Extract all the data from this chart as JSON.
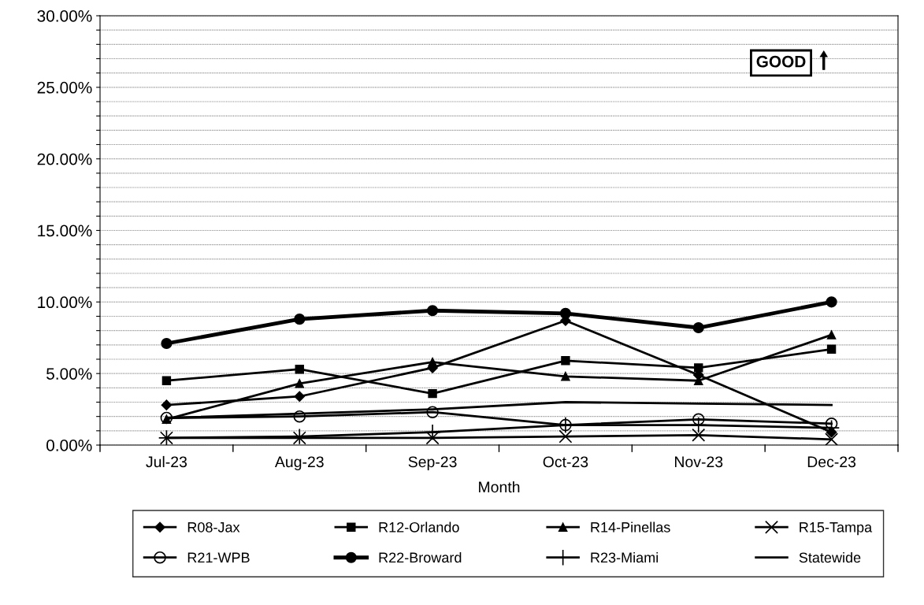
{
  "chart_data": {
    "type": "line",
    "xlabel": "Month",
    "categories": [
      "Jul-23",
      "Aug-23",
      "Sep-23",
      "Oct-23",
      "Nov-23",
      "Dec-23"
    ],
    "series": [
      {
        "name": "R08-Jax",
        "color": "#000000",
        "marker": "diamond",
        "values": [
          2.8,
          3.4,
          5.4,
          8.7,
          4.9,
          0.9
        ]
      },
      {
        "name": "R12-Orlando",
        "color": "#000000",
        "marker": "square",
        "values": [
          4.5,
          5.3,
          3.6,
          5.9,
          5.4,
          6.7
        ]
      },
      {
        "name": "R14-Pinellas",
        "color": "#000000",
        "marker": "triangle",
        "values": [
          1.8,
          4.3,
          5.8,
          4.8,
          4.5,
          7.7
        ]
      },
      {
        "name": "R15-Tampa",
        "color": "#000000",
        "marker": "cross",
        "values": [
          0.5,
          0.5,
          0.5,
          0.6,
          0.7,
          0.4
        ]
      },
      {
        "name": "R21-WPB",
        "color": "#000000",
        "marker": "open circle",
        "values": [
          1.9,
          2.0,
          2.3,
          1.4,
          1.8,
          1.5
        ]
      },
      {
        "name": "R22-Broward",
        "color": "#000000",
        "marker": "circle",
        "values": [
          7.1,
          8.8,
          9.4,
          9.2,
          8.2,
          10.0
        ]
      },
      {
        "name": "R23-Miami",
        "color": "#000000",
        "marker": "plus",
        "values": [
          0.5,
          0.6,
          0.9,
          1.4,
          1.4,
          1.2
        ]
      },
      {
        "name": "Statewide",
        "color": "#000000",
        "marker": "none",
        "values": [
          1.9,
          2.2,
          2.5,
          3.0,
          2.9,
          2.8
        ]
      }
    ],
    "ylim": [
      0,
      30
    ],
    "yticks": [
      {
        "value": 0,
        "label": "0.00%"
      },
      {
        "value": 1,
        "label": null
      },
      {
        "value": 2,
        "label": null
      },
      {
        "value": 3,
        "label": null
      },
      {
        "value": 4,
        "label": null
      },
      {
        "value": 5,
        "label": "5.00%"
      },
      {
        "value": 6,
        "label": null
      },
      {
        "value": 7,
        "label": null
      },
      {
        "value": 8,
        "label": null
      },
      {
        "value": 9,
        "label": null
      },
      {
        "value": 10,
        "label": "10.00%"
      },
      {
        "value": 11,
        "label": null
      },
      {
        "value": 12,
        "label": null
      },
      {
        "value": 13,
        "label": null
      },
      {
        "value": 14,
        "label": null
      },
      {
        "value": 15,
        "label": "15.00%"
      },
      {
        "value": 16,
        "label": null
      },
      {
        "value": 17,
        "label": null
      },
      {
        "value": 18,
        "label": null
      },
      {
        "value": 19,
        "label": null
      },
      {
        "value": 20,
        "label": "20.00%"
      },
      {
        "value": 21,
        "label": null
      },
      {
        "value": 22,
        "label": null
      },
      {
        "value": 23,
        "label": null
      },
      {
        "value": 24,
        "label": null
      },
      {
        "value": 25,
        "label": "25.00%"
      },
      {
        "value": 26,
        "label": null
      },
      {
        "value": 27,
        "label": null
      },
      {
        "value": 28,
        "label": null
      },
      {
        "value": 29,
        "label": null
      },
      {
        "value": 30,
        "label": "30.00%"
      }
    ],
    "grid": "y",
    "legend": "bottom",
    "line_style": "solid",
    "annotations": [
      "GOOD"
    ]
  }
}
